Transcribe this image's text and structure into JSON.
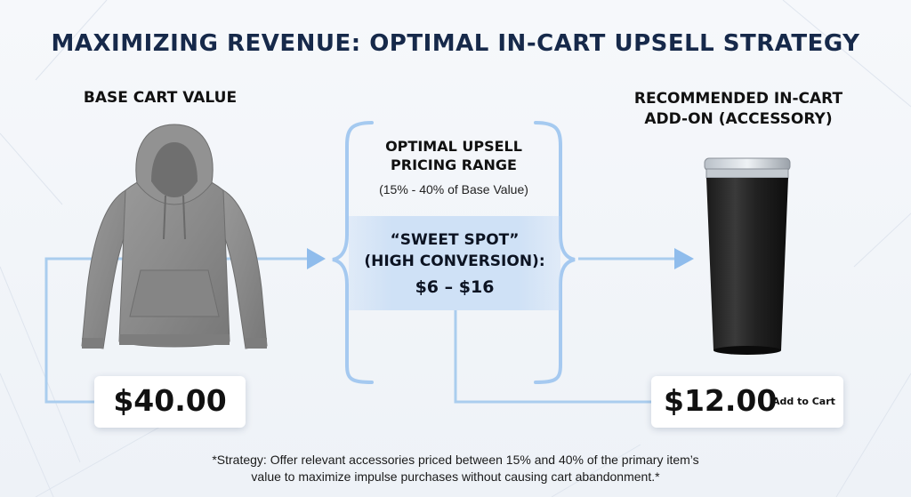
{
  "title": "MAXIMIZING REVENUE: OPTIMAL IN-CART UPSELL STRATEGY",
  "base": {
    "label": "BASE CART VALUE",
    "price": "$40.00",
    "image": "hoodie"
  },
  "upsell": {
    "title_line1": "OPTIMAL UPSELL",
    "title_line2": "PRICING RANGE",
    "subtitle": "(15% - 40% of Base Value)",
    "sweet_line1": "“SWEET SPOT”",
    "sweet_line2": "(HIGH CONVERSION):",
    "sweet_price": "$6 – $16"
  },
  "addon": {
    "label_line1": "RECOMMENDED IN-CART",
    "label_line2": "ADD-ON (ACCESSORY)",
    "price": "$12.00",
    "cta": "Add to Cart",
    "image": "tumbler"
  },
  "footnote": {
    "line1": "*Strategy: Offer relevant accessories priced between 15% and 40% of the primary item’s",
    "line2": "value to maximize impulse purchases without causing cart abandonment.*"
  },
  "colors": {
    "title": "#16294a",
    "connector": "#aacdee",
    "arrow": "#8fbcec",
    "brace": "#9cc4ee",
    "sweet_band": "#cfe1f6"
  }
}
